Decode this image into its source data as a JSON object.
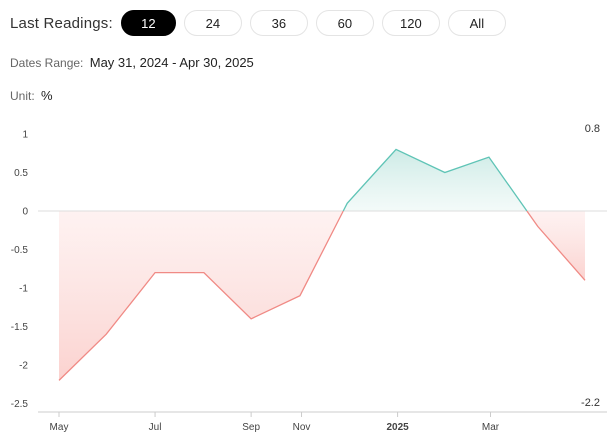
{
  "readings": {
    "label": "Last Readings:",
    "options": [
      "12",
      "24",
      "36",
      "60",
      "120",
      "All"
    ],
    "active": "12"
  },
  "dates_range": {
    "label": "Dates Range:",
    "value": "May 31, 2024 - Apr 30, 2025"
  },
  "unit": {
    "label": "Unit:",
    "value": "%"
  },
  "colors": {
    "negative_line": "#f08a85",
    "negative_fill": "#fbd9d7",
    "positive_line": "#5fc4b6",
    "positive_fill": "#d6efeb",
    "zero_line": "#dddddd",
    "axis": "#cccccc"
  },
  "chart_data": {
    "type": "area",
    "x": [
      "2024-05-31",
      "2024-06-30",
      "2024-07-31",
      "2024-08-31",
      "2024-09-30",
      "2024-10-31",
      "2024-11-30",
      "2024-12-31",
      "2025-01-31",
      "2025-02-28",
      "2025-03-31",
      "2025-04-30"
    ],
    "series": [
      {
        "values": [
          -2.2,
          -1.6,
          -0.8,
          -0.8,
          -1.4,
          -1.1,
          0.1,
          0.8,
          0.5,
          0.7,
          -0.2,
          -0.9
        ]
      }
    ],
    "ylim": [
      -2.5,
      1
    ],
    "yticks": [
      "1",
      "0.5",
      "0",
      "-0.5",
      "-1",
      "-1.5",
      "-2",
      "-2.5"
    ],
    "xticks": [
      {
        "label": "May",
        "date": "2024-05-31",
        "bold": false
      },
      {
        "label": "Jul",
        "date": "2024-07-31",
        "bold": false
      },
      {
        "label": "Sep",
        "date": "2024-09-30",
        "bold": false
      },
      {
        "label": "Nov",
        "date": "2024-11-01",
        "bold": false
      },
      {
        "label": "2025",
        "date": "2025-01-01",
        "bold": true
      },
      {
        "label": "Mar",
        "date": "2025-03-01",
        "bold": false
      }
    ],
    "max_label": "0.8",
    "min_label": "-2.2",
    "grid": false,
    "title": "",
    "xlabel": "",
    "ylabel": ""
  }
}
